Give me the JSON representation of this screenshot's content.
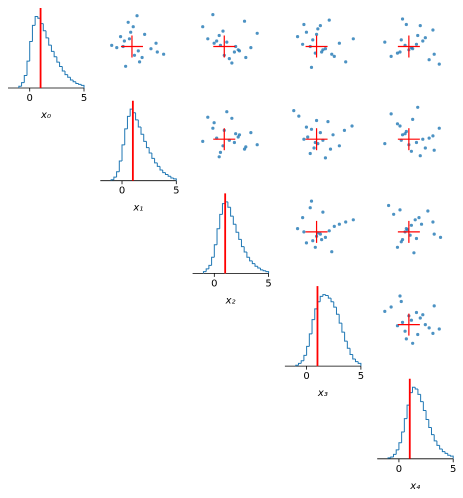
{
  "chart_data": [
    {
      "type": "histogram",
      "xlabel": "x₀",
      "bins": [
        -1,
        -0.75,
        -0.5,
        -0.25,
        0,
        0.25,
        0.5,
        0.75,
        1,
        1.25,
        1.5,
        1.75,
        2,
        2.25,
        2.5,
        2.75,
        3,
        3.25,
        3.5,
        3.75,
        4,
        4.25,
        4.5,
        4.75,
        5
      ],
      "counts": [
        2,
        6,
        14,
        30,
        52,
        70,
        80,
        78,
        72,
        64,
        56,
        48,
        41,
        35,
        29,
        24,
        19,
        15,
        12,
        9,
        7,
        5,
        4,
        3
      ],
      "xlim": [
        -2,
        5
      ],
      "ylim": [
        0,
        85
      ],
      "xticks": [
        0,
        5
      ],
      "marker": 1,
      "color": "#1f77b4",
      "marker_color": "#ff0000"
    },
    {
      "type": "scatter",
      "x": [
        1.2,
        0.4,
        2.5,
        0.9,
        1.6,
        -0.6,
        0.7,
        3.0,
        0.1,
        1.8,
        1.1,
        2.9,
        0.5,
        -0.2,
        1.4,
        0.8,
        3.5,
        2.0,
        0.3,
        1.5
      ],
      "y": [
        0.2,
        1.5,
        0.8,
        2.3,
        -0.4,
        1.1,
        3.2,
        0.5,
        1.9,
        0.0,
        2.8,
        1.3,
        -0.8,
        0.9,
        3.8,
        1.7,
        0.3,
        2.1,
        1.0,
        0.6
      ],
      "xlim": [
        -1.5,
        4.5
      ],
      "ylim": [
        -1.5,
        4.5
      ],
      "marker_x": 1,
      "marker_y": 1,
      "color": "#1f77b4",
      "marker_color": "#ff0000"
    },
    {
      "type": "scatter",
      "x": [
        2.1,
        0.9,
        0.2,
        1.4,
        3.1,
        0.6,
        1.8,
        -0.3,
        2.6,
        1.0,
        0.4,
        1.6,
        3.6,
        0.7,
        2.2,
        -0.7,
        1.2,
        0.1,
        2.7,
        1.9
      ],
      "y": [
        0.7,
        2.4,
        1.3,
        -0.1,
        0.9,
        2.0,
        0.5,
        1.7,
        3.3,
        0.2,
        1.5,
        -0.5,
        2.2,
        1.1,
        0.6,
        2.8,
        1.4,
        3.9,
        0.0,
        1.0
      ],
      "xlim": [
        -1.5,
        4.5
      ],
      "ylim": [
        -1.5,
        4.5
      ],
      "marker_x": 1,
      "marker_y": 1,
      "color": "#1f77b4",
      "marker_color": "#ff0000"
    },
    {
      "type": "scatter",
      "x": [
        0.7,
        2.4,
        1.3,
        -0.1,
        0.9,
        2.0,
        0.5,
        1.7,
        3.3,
        0.2,
        1.5,
        -0.5,
        2.2,
        1.1,
        0.6,
        2.8,
        1.4,
        3.9,
        0.0,
        1.0
      ],
      "y": [
        1.6,
        0.1,
        2.9,
        1.2,
        0.4,
        3.4,
        1.0,
        0.8,
        -0.4,
        2.3,
        0.7,
        1.9,
        0.3,
        2.6,
        -0.9,
        1.3,
        0.5,
        1.7,
        3.0,
        2.1
      ],
      "xlim": [
        -1.5,
        4.5
      ],
      "ylim": [
        -1.5,
        4.5
      ],
      "marker_x": 1,
      "marker_y": 1,
      "color": "#1f77b4",
      "marker_color": "#ff0000"
    },
    {
      "type": "scatter",
      "x": [
        1.6,
        0.1,
        2.9,
        1.2,
        0.4,
        3.4,
        1.0,
        0.8,
        -0.4,
        2.3,
        0.7,
        1.9,
        0.3,
        2.6,
        -0.9,
        1.3,
        0.5,
        1.7,
        3.0,
        2.1
      ],
      "y": [
        1.2,
        0.4,
        2.5,
        0.9,
        1.6,
        -0.6,
        0.7,
        3.0,
        0.1,
        1.8,
        1.1,
        2.9,
        0.5,
        -0.2,
        1.4,
        0.8,
        3.5,
        2.0,
        0.3,
        1.5
      ],
      "xlim": [
        -1.5,
        4.5
      ],
      "ylim": [
        -1.5,
        4.5
      ],
      "marker_x": 1,
      "marker_y": 1,
      "color": "#1f77b4",
      "marker_color": "#ff0000"
    },
    {
      "type": "histogram",
      "xlabel": "x₁",
      "bins": [
        -1,
        -0.75,
        -0.5,
        -0.25,
        0,
        0.25,
        0.5,
        0.75,
        1,
        1.25,
        1.5,
        1.75,
        2,
        2.25,
        2.5,
        2.75,
        3,
        3.25,
        3.5,
        3.75,
        4,
        4.25,
        4.5,
        4.75,
        5
      ],
      "counts": [
        1,
        4,
        10,
        22,
        40,
        58,
        72,
        80,
        76,
        68,
        60,
        52,
        44,
        37,
        31,
        25,
        20,
        16,
        12,
        9,
        7,
        5,
        3,
        2
      ],
      "xlim": [
        -2,
        5
      ],
      "ylim": [
        0,
        85
      ],
      "xticks": [
        0,
        5
      ],
      "marker": 1,
      "color": "#1f77b4",
      "marker_color": "#ff0000"
    },
    {
      "type": "scatter",
      "x": [
        2.1,
        0.9,
        0.2,
        1.4,
        3.1,
        0.6,
        1.8,
        -0.3,
        2.6,
        1.0,
        0.4,
        1.6,
        3.6,
        0.7,
        2.2,
        -0.7,
        1.2,
        0.1,
        2.7,
        1.9
      ],
      "y": [
        1.2,
        0.4,
        2.5,
        0.9,
        1.6,
        -0.6,
        0.7,
        3.0,
        0.1,
        1.8,
        1.1,
        2.9,
        0.5,
        -0.2,
        1.4,
        0.8,
        3.5,
        2.0,
        0.3,
        1.5
      ],
      "xlim": [
        -1.5,
        4.5
      ],
      "ylim": [
        -1.5,
        4.5
      ],
      "marker_x": 1,
      "marker_y": 1,
      "color": "#1f77b4",
      "marker_color": "#ff0000"
    },
    {
      "type": "scatter",
      "x": [
        0.2,
        1.5,
        0.8,
        2.3,
        -0.4,
        1.1,
        3.2,
        0.5,
        1.9,
        0.0,
        2.8,
        1.3,
        -0.8,
        0.9,
        3.8,
        1.7,
        0.3,
        2.1,
        1.0,
        0.6
      ],
      "y": [
        2.1,
        0.9,
        0.2,
        1.4,
        3.1,
        0.6,
        1.8,
        -0.3,
        2.6,
        1.0,
        0.4,
        1.6,
        3.6,
        0.7,
        2.2,
        -0.7,
        1.2,
        0.1,
        2.7,
        1.9
      ],
      "xlim": [
        -1.5,
        4.5
      ],
      "ylim": [
        -1.5,
        4.5
      ],
      "marker_x": 1,
      "marker_y": 1,
      "color": "#1f77b4",
      "marker_color": "#ff0000"
    },
    {
      "type": "scatter",
      "x": [
        1.6,
        0.1,
        2.9,
        1.2,
        0.4,
        3.4,
        1.0,
        0.8,
        -0.4,
        2.3,
        0.7,
        1.9,
        0.3,
        2.6,
        -0.9,
        1.3,
        0.5,
        1.7,
        3.0,
        2.1
      ],
      "y": [
        0.7,
        2.4,
        1.3,
        -0.1,
        0.9,
        2.0,
        0.5,
        1.7,
        3.3,
        0.2,
        1.5,
        -0.5,
        2.2,
        1.1,
        0.6,
        2.8,
        1.4,
        3.9,
        0.0,
        1.0
      ],
      "xlim": [
        -1.5,
        4.5
      ],
      "ylim": [
        -1.5,
        4.5
      ],
      "marker_x": 1,
      "marker_y": 1,
      "color": "#1f77b4",
      "marker_color": "#ff0000"
    },
    {
      "type": "histogram",
      "xlabel": "x₂",
      "bins": [
        -1,
        -0.75,
        -0.5,
        -0.25,
        0,
        0.25,
        0.5,
        0.75,
        1,
        1.25,
        1.5,
        1.75,
        2,
        2.25,
        2.5,
        2.75,
        3,
        3.25,
        3.5,
        3.75,
        4,
        4.25,
        4.5,
        4.75,
        5
      ],
      "counts": [
        2,
        5,
        9,
        18,
        32,
        50,
        66,
        78,
        80,
        74,
        64,
        55,
        46,
        38,
        30,
        24,
        18,
        14,
        11,
        8,
        6,
        4,
        3,
        2
      ],
      "xlim": [
        -2,
        5
      ],
      "ylim": [
        0,
        85
      ],
      "xticks": [
        0,
        5
      ],
      "marker": 1,
      "color": "#1f77b4",
      "marker_color": "#ff0000"
    },
    {
      "type": "scatter",
      "x": [
        0.7,
        2.4,
        1.3,
        -0.1,
        0.9,
        2.0,
        0.5,
        1.7,
        3.3,
        0.2,
        1.5,
        -0.5,
        2.2,
        1.1,
        0.6,
        2.8,
        1.4,
        3.9,
        0.0,
        1.0
      ],
      "y": [
        0.2,
        1.5,
        0.8,
        2.3,
        -0.4,
        1.1,
        3.2,
        0.5,
        1.9,
        0.0,
        2.8,
        1.3,
        -0.8,
        0.9,
        3.8,
        1.7,
        0.3,
        2.1,
        1.0,
        0.6
      ],
      "xlim": [
        -1.5,
        4.5
      ],
      "ylim": [
        -1.5,
        4.5
      ],
      "marker_x": 1,
      "marker_y": 1,
      "color": "#1f77b4",
      "marker_color": "#ff0000"
    },
    {
      "type": "scatter",
      "x": [
        1.2,
        0.4,
        2.5,
        0.9,
        1.6,
        -0.6,
        0.7,
        3.0,
        0.1,
        1.8,
        1.1,
        2.9,
        0.5,
        -0.2,
        1.4,
        0.8,
        3.5,
        2.0,
        0.3,
        1.5
      ],
      "y": [
        1.6,
        0.1,
        2.9,
        1.2,
        0.4,
        3.4,
        1.0,
        0.8,
        -0.4,
        2.3,
        0.7,
        1.9,
        0.3,
        2.6,
        -0.9,
        1.3,
        0.5,
        1.7,
        3.0,
        2.1
      ],
      "xlim": [
        -1.5,
        4.5
      ],
      "ylim": [
        -1.5,
        4.5
      ],
      "marker_x": 1,
      "marker_y": 1,
      "color": "#1f77b4",
      "marker_color": "#ff0000"
    },
    {
      "type": "histogram",
      "xlabel": "x₃",
      "bins": [
        -1,
        -0.75,
        -0.5,
        -0.25,
        0,
        0.25,
        0.5,
        0.75,
        1,
        1.25,
        1.5,
        1.75,
        2,
        2.25,
        2.5,
        2.75,
        3,
        3.25,
        3.5,
        3.75,
        4,
        4.25,
        4.5,
        4.75,
        5
      ],
      "counts": [
        1,
        3,
        6,
        12,
        22,
        36,
        52,
        64,
        72,
        78,
        80,
        79,
        76,
        72,
        66,
        58,
        48,
        38,
        28,
        20,
        13,
        8,
        5,
        3
      ],
      "xlim": [
        -2,
        5
      ],
      "ylim": [
        0,
        85
      ],
      "xticks": [
        0,
        5
      ],
      "marker": 1,
      "color": "#1f77b4",
      "marker_color": "#ff0000"
    },
    {
      "type": "scatter",
      "x": [
        1.6,
        0.1,
        2.9,
        1.2,
        0.4,
        3.4,
        1.0,
        0.8,
        -0.4,
        2.3,
        0.7,
        1.9,
        0.3,
        2.6,
        -0.9,
        1.3,
        0.5,
        1.7,
        3.0,
        2.1
      ],
      "y": [
        2.1,
        0.9,
        0.2,
        1.4,
        3.1,
        0.6,
        1.8,
        -0.3,
        2.6,
        1.0,
        0.4,
        1.6,
        3.6,
        0.7,
        2.2,
        -0.7,
        1.2,
        0.1,
        2.7,
        1.9
      ],
      "xlim": [
        -1.5,
        4.5
      ],
      "ylim": [
        -1.5,
        4.5
      ],
      "marker_x": 1,
      "marker_y": 1,
      "color": "#1f77b4",
      "marker_color": "#ff0000"
    },
    {
      "type": "histogram",
      "xlabel": "x₄",
      "bins": [
        -1,
        -0.75,
        -0.5,
        -0.25,
        0,
        0.25,
        0.5,
        0.75,
        1,
        1.25,
        1.5,
        1.75,
        2,
        2.25,
        2.5,
        2.75,
        3,
        3.25,
        3.5,
        3.75,
        4,
        4.25,
        4.5,
        4.75,
        5
      ],
      "counts": [
        1,
        2,
        5,
        10,
        18,
        30,
        45,
        60,
        74,
        80,
        78,
        72,
        64,
        54,
        44,
        35,
        27,
        20,
        15,
        11,
        8,
        6,
        4,
        3
      ],
      "xlim": [
        -2,
        5
      ],
      "ylim": [
        0,
        85
      ],
      "xticks": [
        0,
        5
      ],
      "marker": 1,
      "color": "#1f77b4",
      "marker_color": "#ff0000"
    }
  ]
}
